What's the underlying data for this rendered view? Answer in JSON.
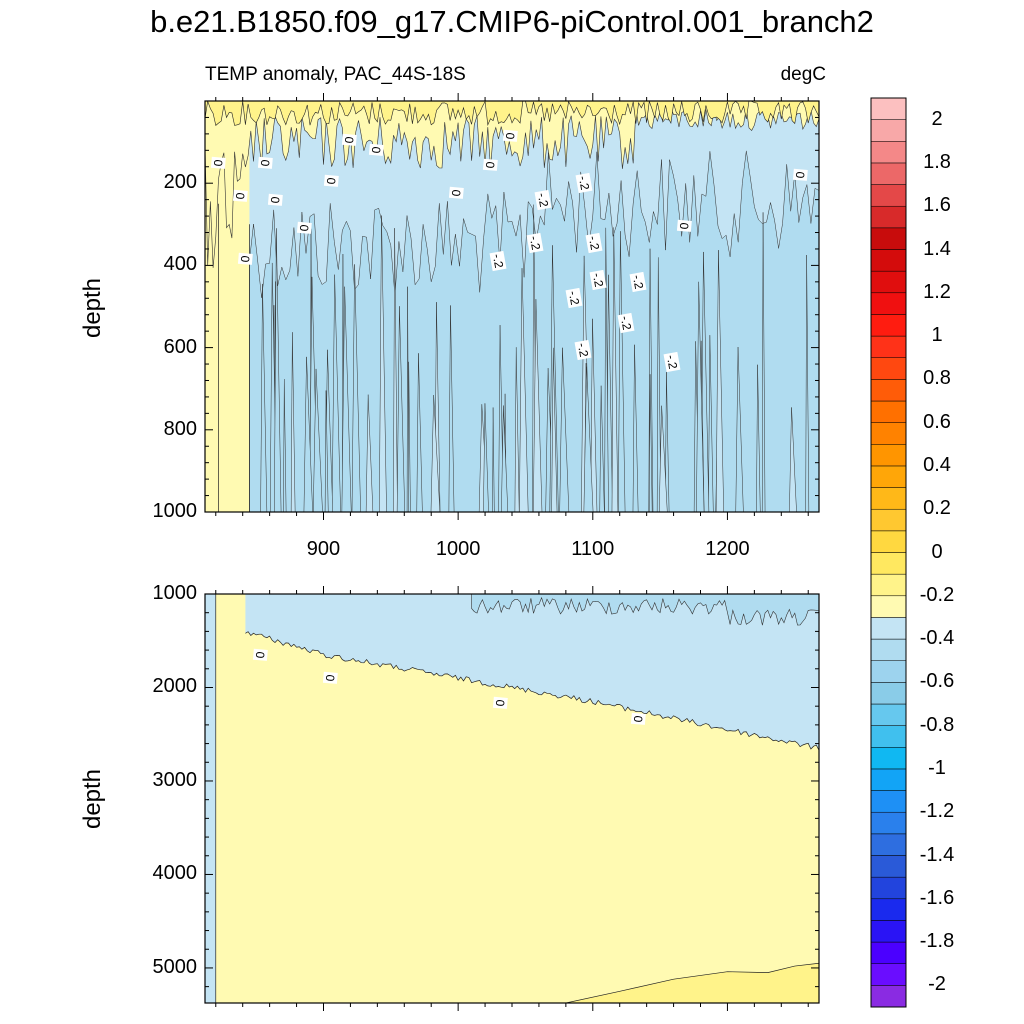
{
  "title": "b.e21.B1850.f09_g17.CMIP6-piControl.001_branch2",
  "subtitle_left": "TEMP anomaly, PAC_44S-18S",
  "subtitle_right": "degC",
  "chart_data": [
    {
      "type": "heatmap",
      "panel": "upper",
      "title": "TEMP anomaly, PAC_44S-18S",
      "units": "degC",
      "xlabel": "",
      "ylabel": "depth",
      "xlim": [
        812,
        1268
      ],
      "ylim": [
        0,
        1000
      ],
      "y_inverted": true,
      "xticks": [
        900,
        1000,
        1100,
        1200
      ],
      "xtick_labels": [
        "900",
        "1000",
        "1100",
        "1200"
      ],
      "yticks": [
        200,
        400,
        600,
        800,
        1000
      ],
      "ytick_labels": [
        "200",
        "400",
        "600",
        "800",
        "1000"
      ],
      "contour_labels": [
        {
          "text": "0",
          "x": 824,
          "y": 150
        },
        {
          "text": "0",
          "x": 840,
          "y": 230
        },
        {
          "text": "0",
          "x": 859,
          "y": 150
        },
        {
          "text": "0",
          "x": 866,
          "y": 240
        },
        {
          "text": "0",
          "x": 888,
          "y": 310
        },
        {
          "text": "0",
          "x": 908,
          "y": 195
        },
        {
          "text": "0",
          "x": 921,
          "y": 95
        },
        {
          "text": "0",
          "x": 941,
          "y": 120
        },
        {
          "text": "0",
          "x": 844,
          "y": 385
        },
        {
          "text": "0",
          "x": 1001,
          "y": 225
        },
        {
          "text": "0",
          "x": 1026,
          "y": 155
        },
        {
          "text": "0",
          "x": 1041,
          "y": 85
        },
        {
          "text": "-.2",
          "x": 1062,
          "y": 240
        },
        {
          "text": "-.2",
          "x": 1093,
          "y": 200
        },
        {
          "text": "-.2",
          "x": 1029,
          "y": 390
        },
        {
          "text": "-.2",
          "x": 1056,
          "y": 345
        },
        {
          "text": "-.2",
          "x": 1100,
          "y": 345
        },
        {
          "text": "-.2",
          "x": 1103,
          "y": 435
        },
        {
          "text": "-.2",
          "x": 1133,
          "y": 440
        },
        {
          "text": "-.2",
          "x": 1085,
          "y": 480
        },
        {
          "text": "-.2",
          "x": 1124,
          "y": 540
        },
        {
          "text": "-.2",
          "x": 1092,
          "y": 605
        },
        {
          "text": "-.2",
          "x": 1158,
          "y": 635
        },
        {
          "text": "0",
          "x": 1170,
          "y": 305
        },
        {
          "text": "0",
          "x": 1256,
          "y": 180
        }
      ]
    },
    {
      "type": "heatmap",
      "panel": "lower",
      "xlabel": "",
      "ylabel": "depth",
      "xlim": [
        812,
        1268
      ],
      "ylim": [
        1000,
        5375
      ],
      "y_inverted": true,
      "yticks": [
        1000,
        2000,
        3000,
        4000,
        5000
      ],
      "ytick_labels": [
        "1000",
        "2000",
        "3000",
        "4000",
        "5000"
      ],
      "zero_contour_depth": [
        [
          842,
          1400
        ],
        [
          900,
          1650
        ],
        [
          1000,
          1900
        ],
        [
          1100,
          2150
        ],
        [
          1200,
          2450
        ],
        [
          1268,
          2650
        ]
      ],
      "contour_labels": [
        {
          "text": "0",
          "x": 855,
          "y": 1650
        },
        {
          "text": "0",
          "x": 907,
          "y": 1900
        },
        {
          "text": "0",
          "x": 1033,
          "y": 2170
        },
        {
          "text": "0",
          "x": 1136,
          "y": 2340
        }
      ]
    }
  ],
  "colorbar": {
    "levels": [
      -2.1,
      -2,
      -1.9,
      -1.8,
      -1.7,
      -1.6,
      -1.5,
      -1.4,
      -1.3,
      -1.2,
      -1.1,
      -1,
      -0.9,
      -0.8,
      -0.7,
      -0.6,
      -0.5,
      -0.4,
      -0.3,
      -0.2,
      -0.1,
      0,
      0.1,
      0.2,
      0.3,
      0.4,
      0.5,
      0.6,
      0.7,
      0.8,
      0.9,
      1,
      1.1,
      1.2,
      1.3,
      1.4,
      1.5,
      1.6,
      1.7,
      1.8,
      1.9,
      2,
      2.1
    ],
    "colors": [
      "#8a2be2",
      "#6a0dff",
      "#4b00ff",
      "#2a14f5",
      "#1a2aee",
      "#2244dd",
      "#2a5ad8",
      "#2e6ee0",
      "#2a80ec",
      "#1e90f5",
      "#12a4f6",
      "#10b8f2",
      "#40c0ee",
      "#66c8ee",
      "#8acce8",
      "#9dd3ee",
      "#b0dcf0",
      "#c4e4f4",
      "#fffab2",
      "#fff38a",
      "#ffe860",
      "#ffd840",
      "#ffc830",
      "#ffb818",
      "#ffa608",
      "#ff9500",
      "#ff8200",
      "#ff7000",
      "#ff5c08",
      "#ff4810",
      "#ff3218",
      "#ff1c10",
      "#f01010",
      "#e00e0e",
      "#d40c0c",
      "#c80c0c",
      "#d82a2a",
      "#e44848",
      "#ec6868",
      "#f48888",
      "#f8a8a8",
      "#fcc0c0"
    ],
    "tick_labels": [
      "2",
      "1.8",
      "1.6",
      "1.4",
      "1.2",
      "1",
      "0.8",
      "0.6",
      "0.4",
      "0.2",
      "0",
      "-0.2",
      "-0.4",
      "-0.6",
      "-0.8",
      "-1",
      "-1.2",
      "-1.4",
      "-1.6",
      "-1.8",
      "-2"
    ]
  }
}
